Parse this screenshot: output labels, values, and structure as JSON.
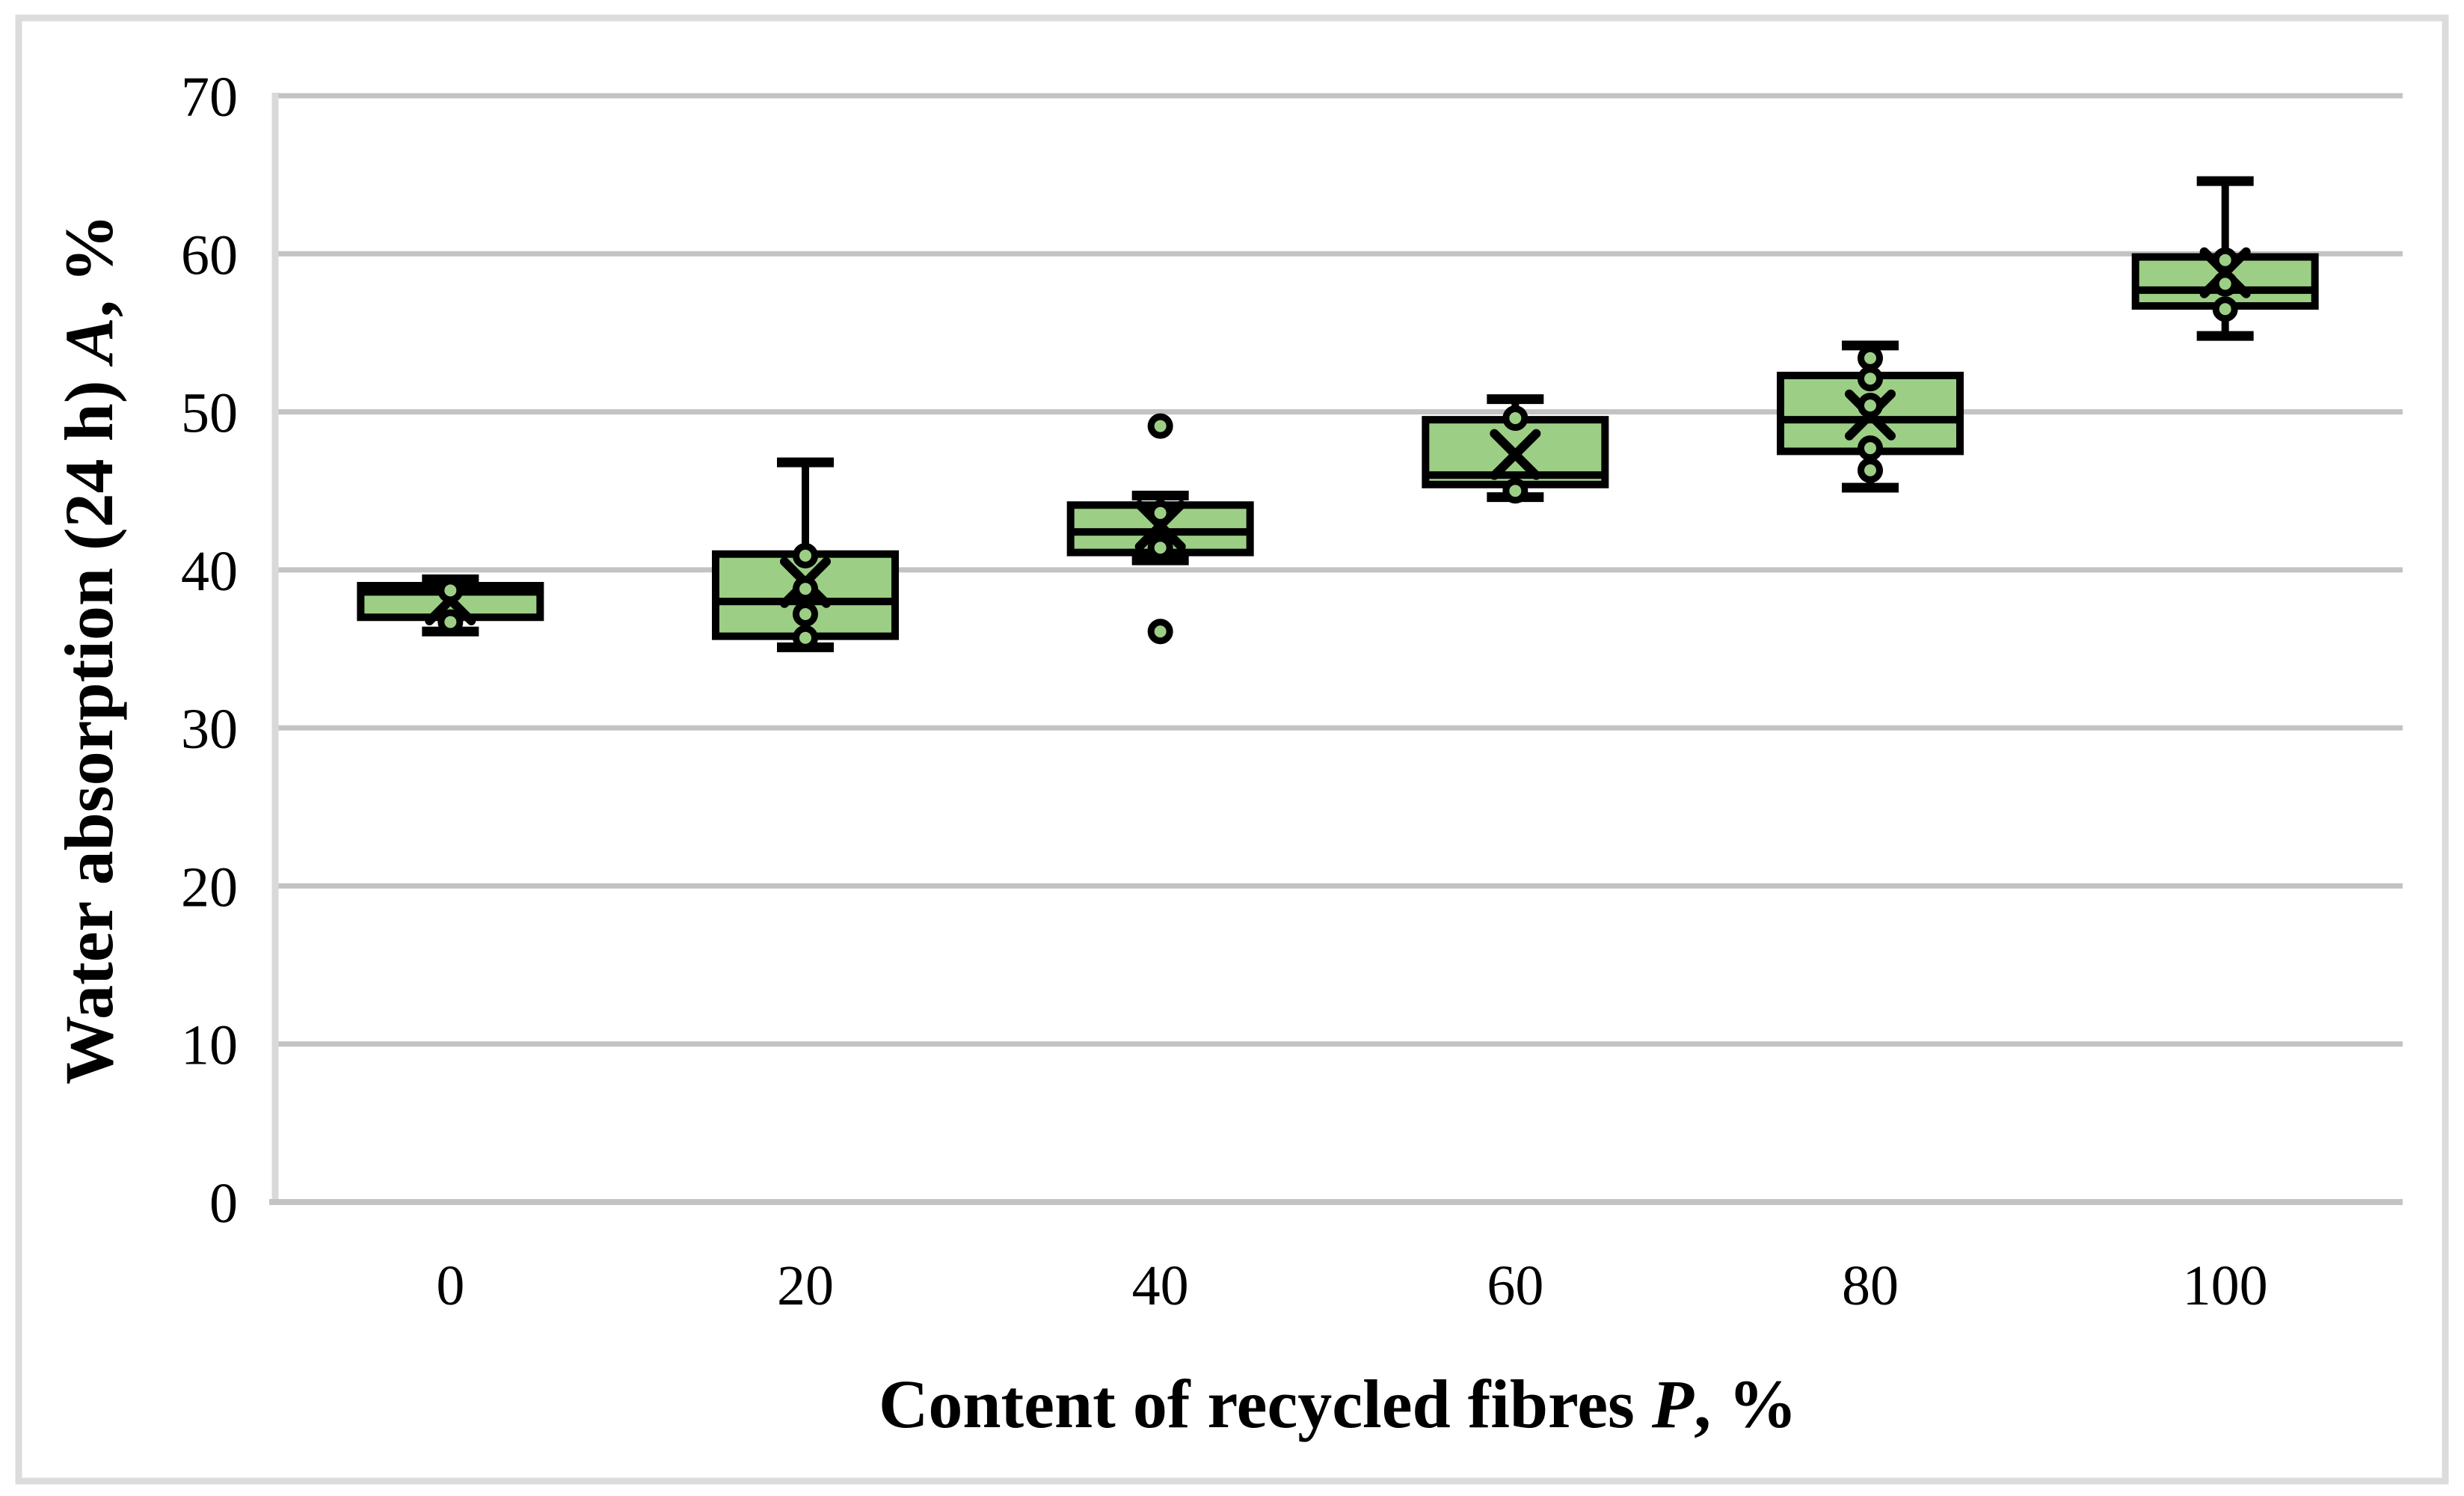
{
  "figure": {
    "background": "#FFFFFF",
    "border_color": "#DCDCDC"
  },
  "chart_data": {
    "type": "box",
    "title": "",
    "xlabel": "Content of recycled fibres P, %",
    "ylabel": "Water absorption (24 h) A, %",
    "xlabel_parts": {
      "prefix": "Content of recycled fibres ",
      "italic": "P",
      "suffix": ", %"
    },
    "ylabel_parts": {
      "prefix": "Water absorption (24 h) ",
      "italic": "A",
      "suffix": ", %"
    },
    "x_categories": [
      "0",
      "20",
      "40",
      "60",
      "80",
      "100"
    ],
    "y_axis": {
      "min": 0,
      "max": 70,
      "step": 10,
      "tick_labels": [
        "0",
        "10",
        "20",
        "30",
        "40",
        "50",
        "60",
        "70"
      ]
    },
    "grid": true,
    "legend": "none",
    "colors": {
      "box_fill": "#9CCF85",
      "box_stroke": "#000000",
      "grid": "#C3C3C3",
      "axis": "#D9D9D9",
      "text": "#000000"
    },
    "boxes": [
      {
        "category": "0",
        "whisker_low": 36.1,
        "q1": 37.0,
        "median": 38.6,
        "q3": 39.0,
        "whisker_high": 39.4,
        "mean": 38.1,
        "points": [
          38.7,
          36.7
        ],
        "outliers": []
      },
      {
        "category": "20",
        "whisker_low": 35.1,
        "q1": 35.8,
        "median": 38.0,
        "q3": 41.0,
        "whisker_high": 46.8,
        "mean": 39.2,
        "points": [
          40.9,
          38.8,
          37.2,
          35.7
        ],
        "outliers": []
      },
      {
        "category": "40",
        "whisker_low": 40.6,
        "q1": 41.1,
        "median": 42.4,
        "q3": 44.1,
        "whisker_high": 44.7,
        "mean": 42.8,
        "points": [
          43.6,
          41.4
        ],
        "outliers": [
          49.1,
          36.1
        ]
      },
      {
        "category": "60",
        "whisker_low": 44.6,
        "q1": 45.4,
        "median": 46.0,
        "q3": 49.5,
        "whisker_high": 50.8,
        "mean": 47.3,
        "points": [
          49.6,
          45.0
        ],
        "outliers": []
      },
      {
        "category": "80",
        "whisker_low": 45.2,
        "q1": 47.5,
        "median": 49.5,
        "q3": 52.3,
        "whisker_high": 54.2,
        "mean": 49.8,
        "points": [
          53.4,
          52.1,
          50.4,
          47.7,
          46.3
        ],
        "outliers": []
      },
      {
        "category": "100",
        "whisker_low": 54.8,
        "q1": 56.7,
        "median": 57.7,
        "q3": 59.8,
        "whisker_high": 64.6,
        "mean": 58.8,
        "points": [
          59.6,
          58.1,
          56.5
        ],
        "outliers": []
      }
    ]
  }
}
